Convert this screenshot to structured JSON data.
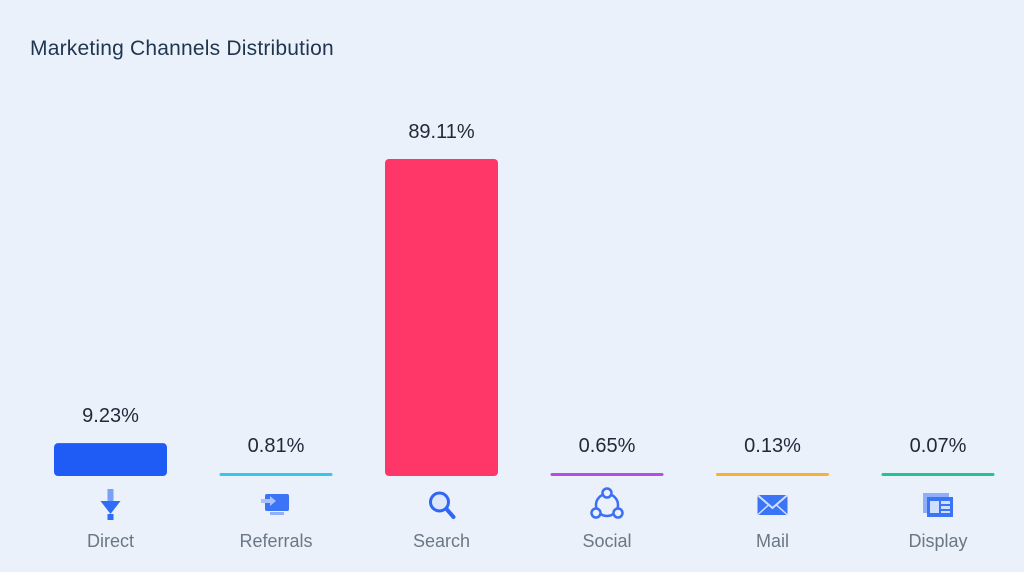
{
  "chart_data": {
    "type": "bar",
    "title": "Marketing Channels Distribution",
    "categories": [
      "Direct",
      "Referrals",
      "Search",
      "Social",
      "Mail",
      "Display"
    ],
    "values": [
      9.23,
      0.81,
      89.11,
      0.65,
      0.13,
      0.07
    ],
    "value_labels": [
      "9.23%",
      "0.81%",
      "89.11%",
      "0.65%",
      "0.13%",
      "0.07%"
    ],
    "colors": [
      "#1f5cf5",
      "#35c7ea",
      "#ff3668",
      "#b44ee6",
      "#f6b22e",
      "#1fc493"
    ],
    "icons": [
      "direct-arrow-icon",
      "referrals-icon",
      "search-icon",
      "social-icon",
      "mail-icon",
      "display-icon"
    ],
    "ylim": [
      0,
      89.11
    ],
    "grid": false,
    "legend": "none"
  }
}
